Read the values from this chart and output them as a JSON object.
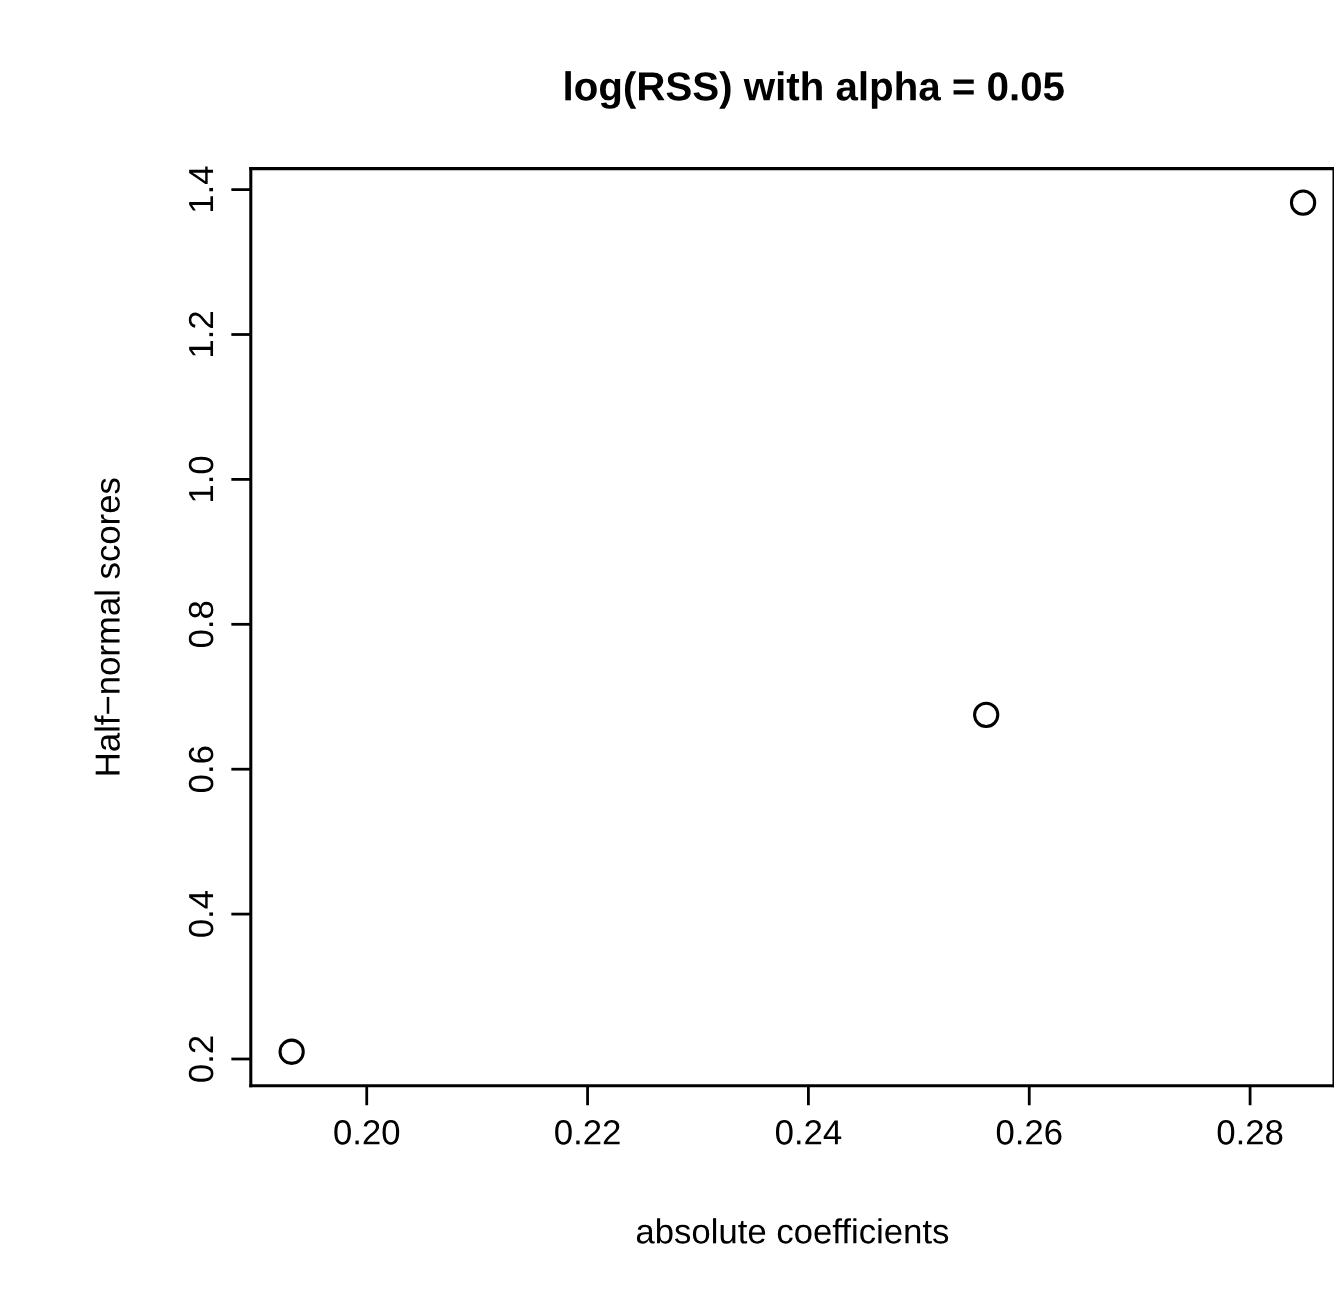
{
  "chart_data": {
    "type": "scatter",
    "title": "log(RSS) with alpha = 0.05",
    "xlabel": "absolute coefficients",
    "ylabel": "Half−normal scores",
    "x": [
      0.1932,
      0.2561,
      0.2848
    ],
    "series": [
      {
        "color": "#000000",
        "values": [
          0.21,
          0.675,
          1.382
        ]
      }
    ],
    "marker": "circle",
    "xlim": [
      0.1895,
      0.2876
    ],
    "ylim": [
      0.163,
      1.429
    ],
    "xticks": [
      {
        "value": 0.2,
        "label": "0.20"
      },
      0.22,
      0.24,
      0.26,
      0.28
    ],
    "yticks": [
      0.2,
      0.4,
      0.6,
      0.8,
      {
        "value": 1.0,
        "label": "1.0"
      },
      1.2,
      1.4
    ],
    "grid": false
  }
}
